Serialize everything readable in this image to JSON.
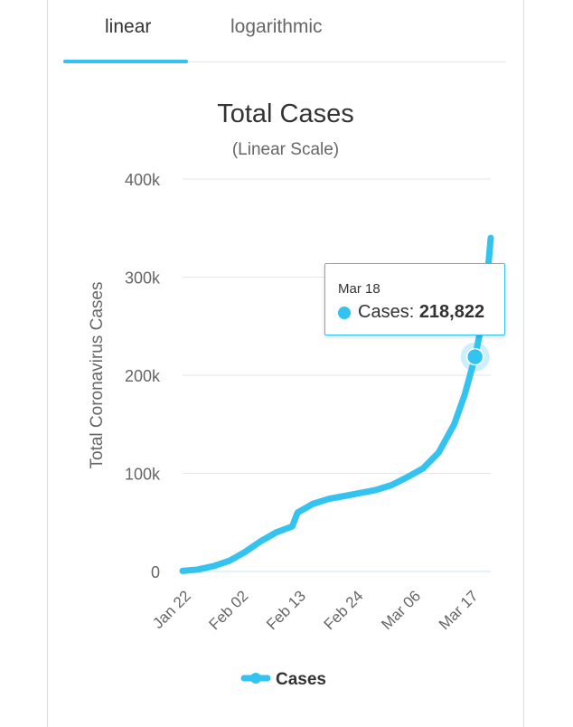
{
  "tabs": [
    {
      "label": "linear",
      "active": true
    },
    {
      "label": "logarithmic",
      "active": false
    }
  ],
  "accent_color": "#33c3f0",
  "tooltip": {
    "date": "Mar 18",
    "series_label": "Cases: ",
    "value": "218,822"
  },
  "chart_data": {
    "type": "line",
    "title": "Total Cases",
    "subtitle": "(Linear Scale)",
    "xlabel": "",
    "ylabel": "Total Coronavirus Cases",
    "ylim": [
      0,
      400000
    ],
    "y_ticks": [
      0,
      100000,
      200000,
      300000,
      400000
    ],
    "y_tick_labels": [
      "0",
      "100k",
      "200k",
      "300k",
      "400k"
    ],
    "x_tick_labels": [
      "Jan 22",
      "Feb 02",
      "Feb 13",
      "Feb 24",
      "Mar 06",
      "Mar 17"
    ],
    "grid": true,
    "legend_position": "bottom",
    "series": [
      {
        "name": "Cases",
        "color": "#33c3f0",
        "x": [
          "Jan 22",
          "Jan 25",
          "Jan 28",
          "Jan 31",
          "Feb 03",
          "Feb 06",
          "Feb 09",
          "Feb 12",
          "Feb 13",
          "Feb 16",
          "Feb 19",
          "Feb 22",
          "Feb 25",
          "Feb 28",
          "Mar 02",
          "Mar 05",
          "Mar 08",
          "Mar 11",
          "Mar 14",
          "Mar 16",
          "Mar 18",
          "Mar 19",
          "Mar 20",
          "Mar 21"
        ],
        "values": [
          580,
          2000,
          5600,
          11000,
          20000,
          31000,
          40000,
          46000,
          60000,
          69000,
          74000,
          77000,
          80000,
          83000,
          88000,
          96000,
          105000,
          121000,
          150000,
          180000,
          218822,
          245000,
          280000,
          340000
        ]
      }
    ],
    "highlight": {
      "x": "Mar 18",
      "value": 218822
    }
  }
}
